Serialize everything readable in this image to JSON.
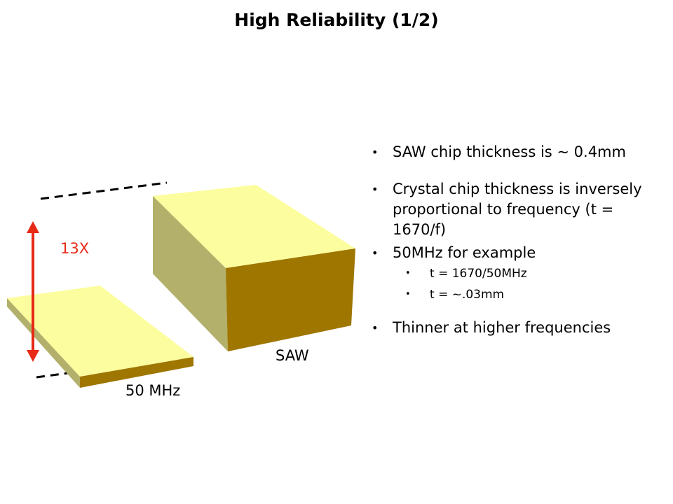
{
  "slide": {
    "title": "High Reliability (1/2)"
  },
  "diagram": {
    "ratio_label": "13X",
    "thin_chip_label": "50 MHz",
    "thick_chip_label": "SAW",
    "colors": {
      "top_face": "#fcfd9e",
      "front_face": "#9e7600",
      "side_face": "#b2b06b",
      "arrow": "#e62a16"
    }
  },
  "bullets": [
    {
      "text": "SAW chip thickness is ~ 0.4mm"
    },
    {
      "text": "Crystal chip thickness is inversely proportional to frequency (t = 1670/f)"
    },
    {
      "text": "50MHz for example",
      "sub": [
        {
          "text": "t = 1670/50MHz"
        },
        {
          "text": "t = ~.03mm"
        }
      ]
    },
    {
      "text": "Thinner at higher frequencies"
    }
  ]
}
